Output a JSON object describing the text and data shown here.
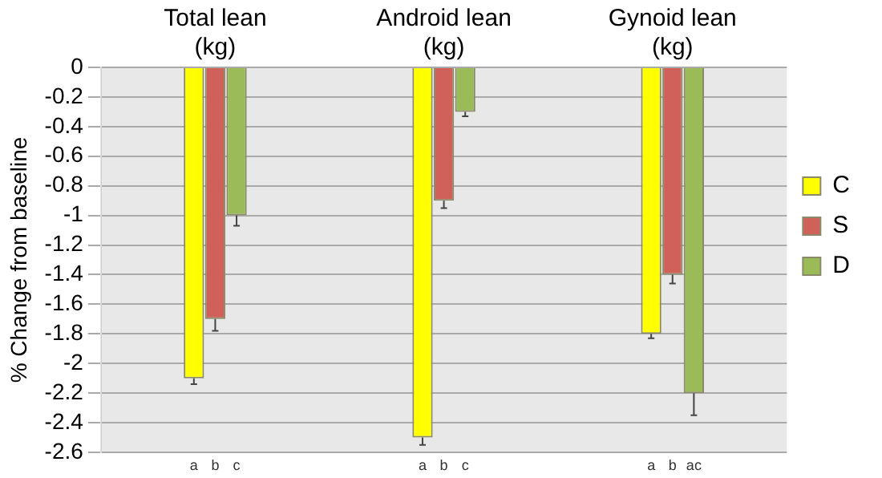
{
  "chart_data": {
    "type": "bar",
    "ylabel": "% Change from baseline",
    "categories": [
      "Total lean (kg)",
      "Android lean (kg)",
      "Gynoid lean (kg)"
    ],
    "series": [
      {
        "name": "C",
        "color": "#ffff00",
        "values": [
          -2.1,
          -2.5,
          -1.8
        ],
        "errors": [
          [
            -2.14,
            -2.1
          ],
          [
            -2.55,
            -2.5
          ],
          [
            -1.83,
            -1.8
          ]
        ]
      },
      {
        "name": "S",
        "color": "#d0605a",
        "values": [
          -1.7,
          -0.9,
          -1.4
        ],
        "errors": [
          [
            -1.78,
            -1.7
          ],
          [
            -0.95,
            -0.9
          ],
          [
            -1.46,
            -1.4
          ]
        ]
      },
      {
        "name": "D",
        "color": "#9bbb59",
        "values": [
          -1.0,
          -0.3,
          -2.2
        ],
        "errors": [
          [
            -1.07,
            -1.0
          ],
          [
            -0.33,
            -0.3
          ],
          [
            -2.35,
            -2.2
          ]
        ]
      }
    ],
    "annotations": [
      "a",
      "b",
      "c",
      "a",
      "b",
      "c",
      "a",
      "b",
      "ac"
    ],
    "ylim": [
      -2.6,
      0
    ],
    "yticks": [
      0,
      -0.2,
      -0.4,
      -0.6,
      -0.8,
      -1,
      -1.2,
      -1.4,
      -1.6,
      -1.8,
      -2,
      -2.2,
      -2.4,
      -2.6
    ],
    "grid": "y",
    "legend": "right"
  }
}
